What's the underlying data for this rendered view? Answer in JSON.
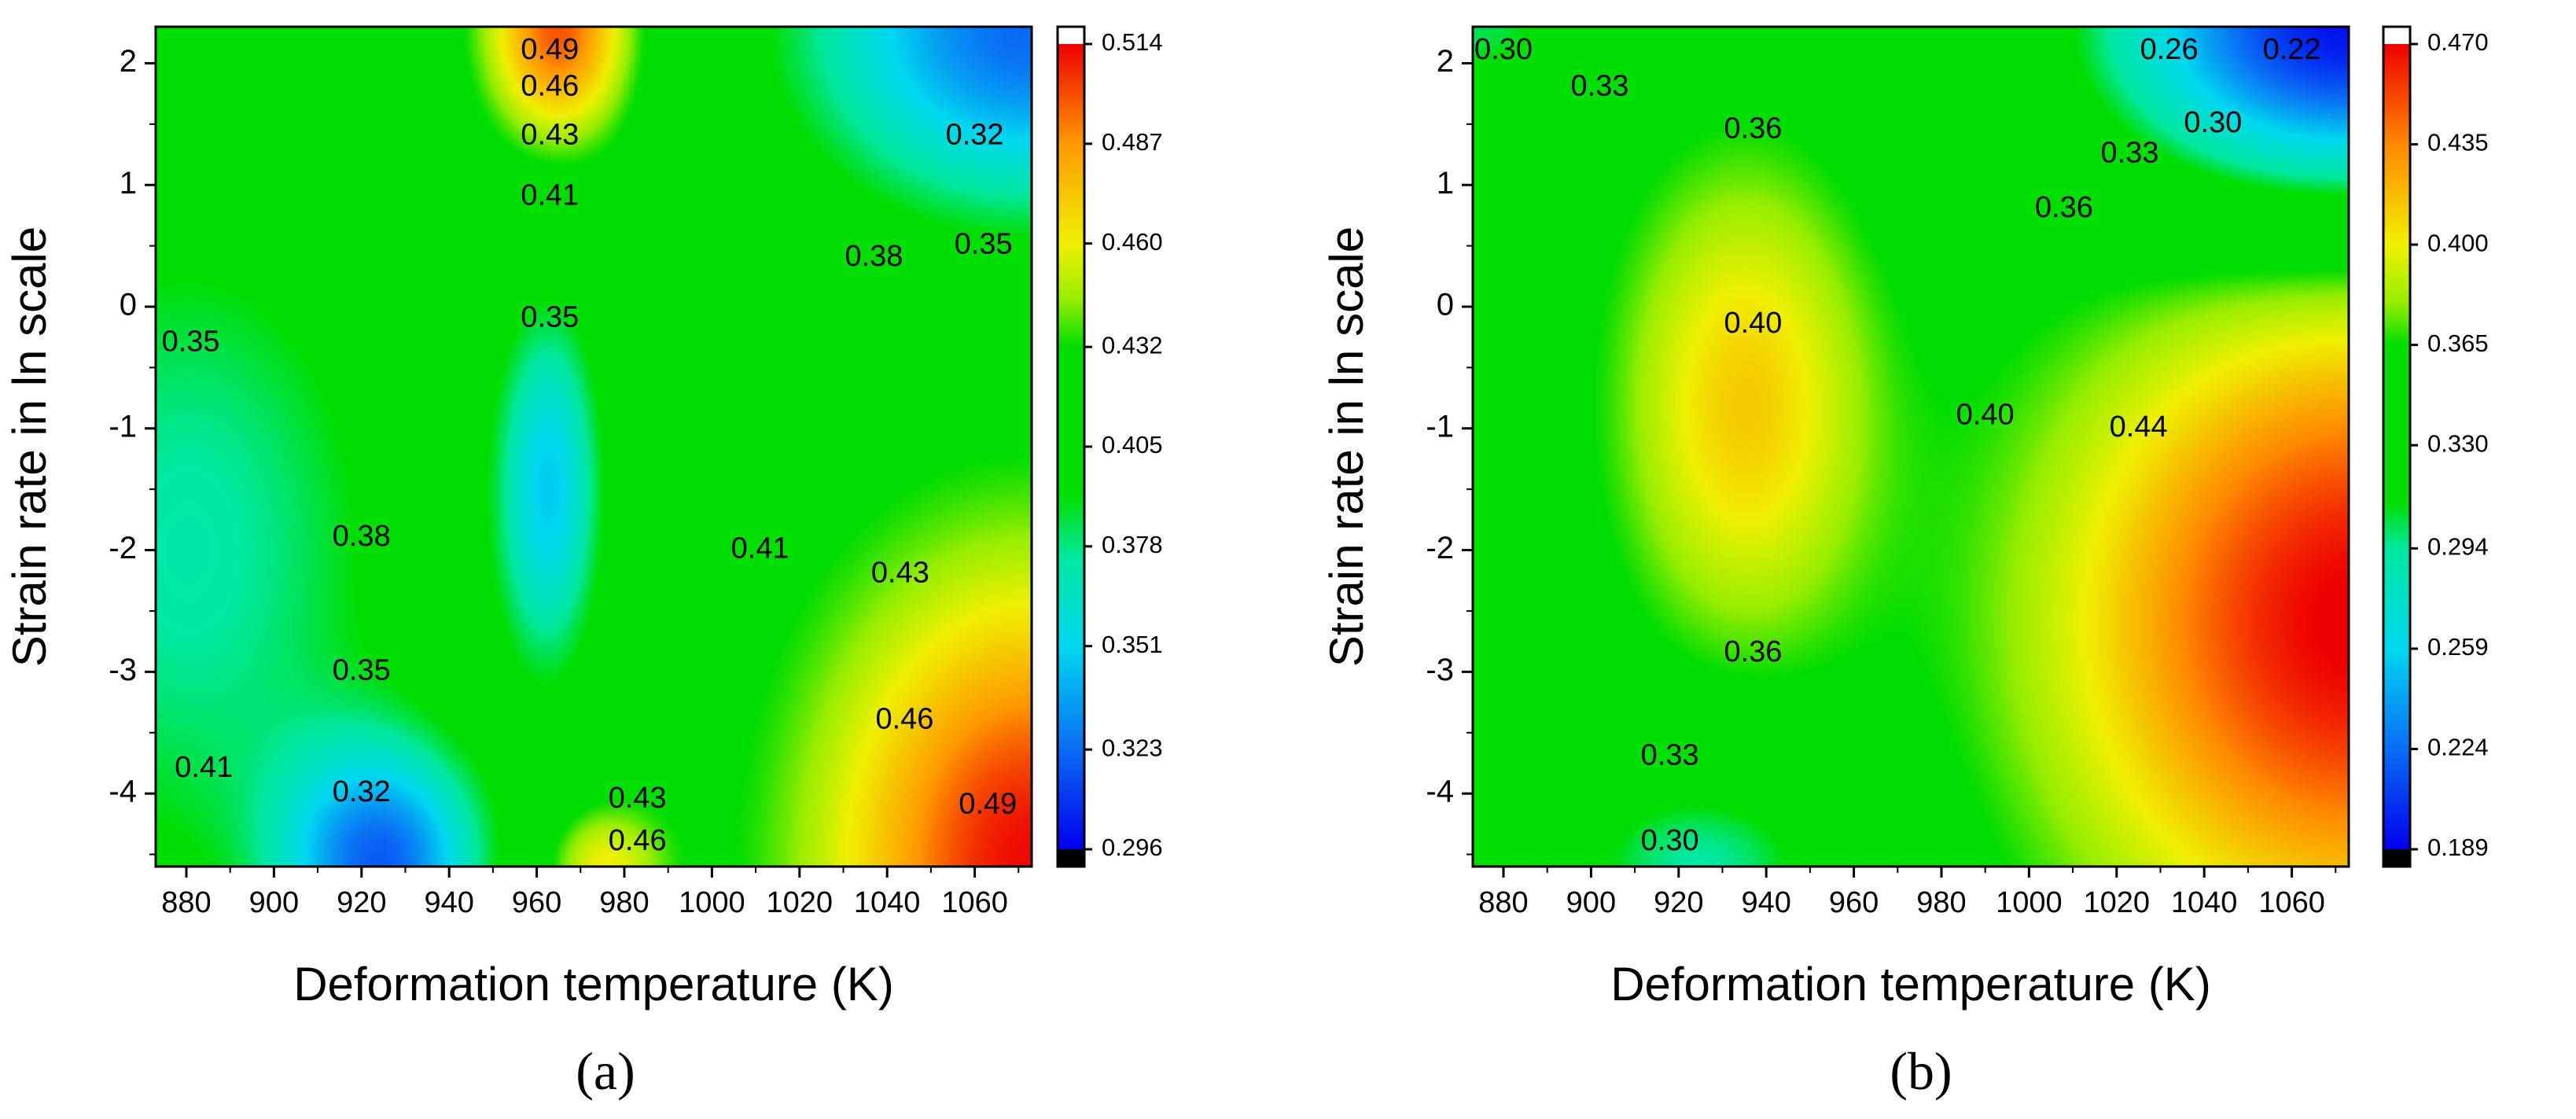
{
  "chart_data": [
    {
      "type": "heatmap",
      "panel_label": "(a)",
      "xlabel": "Deformation temperature (K)",
      "ylabel": "Strain rate in ln scale",
      "xlim": [
        873,
        1073
      ],
      "ylim": [
        -4.6,
        2.3
      ],
      "x_ticks": [
        880,
        900,
        920,
        940,
        960,
        980,
        1000,
        1020,
        1040,
        1060
      ],
      "y_ticks": [
        -4,
        -3,
        -2,
        -1,
        0,
        1,
        2
      ],
      "colorbar": {
        "min": 0.296,
        "max": 0.514,
        "tick_values": [
          0.296,
          0.323,
          0.351,
          0.378,
          0.405,
          0.432,
          0.46,
          0.487,
          0.514
        ],
        "tick_labels": [
          "0.296",
          "0.323",
          "0.351",
          "0.378",
          "0.405",
          "0.432",
          "0.460",
          "0.487",
          "0.514"
        ]
      },
      "color_stops": [
        {
          "v": 0.296,
          "c": "#0000ee"
        },
        {
          "v": 0.323,
          "c": "#0a6cf5"
        },
        {
          "v": 0.351,
          "c": "#00d8f0"
        },
        {
          "v": 0.375,
          "c": "#00e8a0"
        },
        {
          "v": 0.392,
          "c": "#00dd00"
        },
        {
          "v": 0.432,
          "c": "#00dd00"
        },
        {
          "v": 0.445,
          "c": "#99ee00"
        },
        {
          "v": 0.46,
          "c": "#f0f000"
        },
        {
          "v": 0.487,
          "c": "#ff9900"
        },
        {
          "v": 0.514,
          "c": "#ee0000"
        }
      ],
      "blobs": [
        {
          "x": 963,
          "y": -1.5,
          "sx": 13,
          "sy": 1.6,
          "a": -0.07
        },
        {
          "x": 925,
          "y": -4.6,
          "sx": 24,
          "sy": 1.0,
          "a": -0.09
        },
        {
          "x": 880,
          "y": -2.0,
          "sx": 55,
          "sy": 3.2,
          "a": -0.05
        },
        {
          "x": 1073,
          "y": 2.3,
          "sx": 55,
          "sy": 1.6,
          "a": -0.1
        },
        {
          "x": 965,
          "y": 2.3,
          "sx": 16,
          "sy": 0.9,
          "a": 0.08
        },
        {
          "x": 1073,
          "y": -4.6,
          "sx": 45,
          "sy": 2.3,
          "a": 0.09
        },
        {
          "x": 975,
          "y": -4.6,
          "sx": 14,
          "sy": 0.5,
          "a": 0.04
        }
      ],
      "contours": [
        {
          "text": "0.49",
          "x": 963,
          "y": 2.1
        },
        {
          "text": "0.46",
          "x": 963,
          "y": 1.8
        },
        {
          "text": "0.43",
          "x": 963,
          "y": 1.4
        },
        {
          "text": "0.41",
          "x": 963,
          "y": 0.9
        },
        {
          "text": "0.32",
          "x": 1060,
          "y": 1.4
        },
        {
          "text": "0.35",
          "x": 1062,
          "y": 0.5
        },
        {
          "text": "0.38",
          "x": 1037,
          "y": 0.4
        },
        {
          "text": "0.35",
          "x": 963,
          "y": -0.1
        },
        {
          "text": "0.35",
          "x": 881,
          "y": -0.3
        },
        {
          "text": "0.38",
          "x": 920,
          "y": -1.9
        },
        {
          "text": "0.41",
          "x": 1011,
          "y": -2.0
        },
        {
          "text": "0.43",
          "x": 1043,
          "y": -2.2
        },
        {
          "text": "0.35",
          "x": 920,
          "y": -3.0
        },
        {
          "text": "0.46",
          "x": 1044,
          "y": -3.4
        },
        {
          "text": "0.41",
          "x": 884,
          "y": -3.8
        },
        {
          "text": "0.32",
          "x": 920,
          "y": -4.0
        },
        {
          "text": "0.43",
          "x": 983,
          "y": -4.05
        },
        {
          "text": "0.46",
          "x": 983,
          "y": -4.4
        },
        {
          "text": "0.49",
          "x": 1063,
          "y": -4.1
        }
      ]
    },
    {
      "type": "heatmap",
      "panel_label": "(b)",
      "xlabel": "Deformation temperature (K)",
      "ylabel": "Strain rate in ln scale",
      "xlim": [
        873,
        1073
      ],
      "ylim": [
        -4.6,
        2.3
      ],
      "x_ticks": [
        880,
        900,
        920,
        940,
        960,
        980,
        1000,
        1020,
        1040,
        1060
      ],
      "y_ticks": [
        -4,
        -3,
        -2,
        -1,
        0,
        1,
        2
      ],
      "colorbar": {
        "min": 0.189,
        "max": 0.47,
        "tick_values": [
          0.189,
          0.224,
          0.259,
          0.294,
          0.33,
          0.365,
          0.4,
          0.435,
          0.47
        ],
        "tick_labels": [
          "0.189",
          "0.224",
          "0.259",
          "0.294",
          "0.330",
          "0.365",
          "0.400",
          "0.435",
          "0.470"
        ]
      },
      "color_stops": [
        {
          "v": 0.189,
          "c": "#0000ee"
        },
        {
          "v": 0.224,
          "c": "#0a6cf5"
        },
        {
          "v": 0.259,
          "c": "#00d8f0"
        },
        {
          "v": 0.294,
          "c": "#00e8a0"
        },
        {
          "v": 0.31,
          "c": "#00dd00"
        },
        {
          "v": 0.365,
          "c": "#00dd00"
        },
        {
          "v": 0.38,
          "c": "#99ee00"
        },
        {
          "v": 0.4,
          "c": "#f0f000"
        },
        {
          "v": 0.435,
          "c": "#ff8800"
        },
        {
          "v": 0.47,
          "c": "#ee0000"
        }
      ],
      "blobs": [
        {
          "x": 1073,
          "y": 2.3,
          "sx": 55,
          "sy": 1.4,
          "a": -0.16
        },
        {
          "x": 873,
          "y": 2.3,
          "sx": 30,
          "sy": 0.6,
          "a": -0.05
        },
        {
          "x": 935,
          "y": -0.8,
          "sx": 28,
          "sy": 1.9,
          "a": 0.06
        },
        {
          "x": 1075,
          "y": -2.6,
          "sx": 65,
          "sy": 2.6,
          "a": 0.12
        },
        {
          "x": 925,
          "y": -4.6,
          "sx": 35,
          "sy": 0.9,
          "a": -0.06
        }
      ],
      "contours": [
        {
          "text": "0.30",
          "x": 880,
          "y": 2.1
        },
        {
          "text": "0.33",
          "x": 902,
          "y": 1.8
        },
        {
          "text": "0.36",
          "x": 937,
          "y": 1.45
        },
        {
          "text": "0.26",
          "x": 1032,
          "y": 2.1
        },
        {
          "text": "0.22",
          "x": 1060,
          "y": 2.1
        },
        {
          "text": "0.30",
          "x": 1042,
          "y": 1.5
        },
        {
          "text": "0.33",
          "x": 1023,
          "y": 1.25
        },
        {
          "text": "0.36",
          "x": 1008,
          "y": 0.8
        },
        {
          "text": "0.40",
          "x": 937,
          "y": -0.15
        },
        {
          "text": "0.40",
          "x": 990,
          "y": -0.9
        },
        {
          "text": "0.44",
          "x": 1025,
          "y": -1.0
        },
        {
          "text": "0.36",
          "x": 937,
          "y": -2.85
        },
        {
          "text": "0.33",
          "x": 918,
          "y": -3.7
        },
        {
          "text": "0.30",
          "x": 918,
          "y": -4.4
        }
      ]
    }
  ]
}
